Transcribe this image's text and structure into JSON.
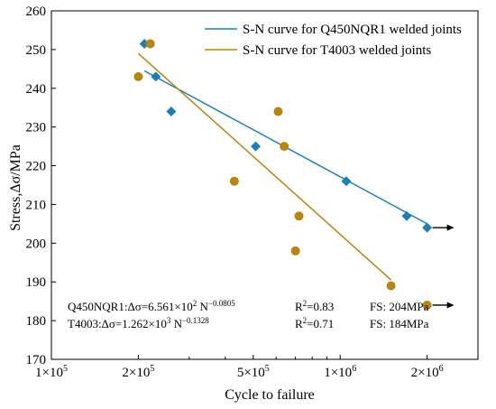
{
  "chart_data": {
    "type": "scatter",
    "title": "",
    "xlabel": "Cycle to failure",
    "ylabel": "Stress,Δσ/MPa",
    "x_scale": "log",
    "xlim": [
      100000,
      3000000
    ],
    "ylim": [
      170,
      260
    ],
    "x_ticks": [
      {
        "value": 100000,
        "mantissa": "1×10",
        "exp": "5"
      },
      {
        "value": 200000,
        "mantissa": "2×10",
        "exp": "5"
      },
      {
        "value": 500000,
        "mantissa": "5×10",
        "exp": "5"
      },
      {
        "value": 1000000,
        "mantissa": "1×10",
        "exp": "6"
      },
      {
        "value": 2000000,
        "mantissa": "2×10",
        "exp": "6"
      }
    ],
    "y_ticks": [
      170,
      180,
      190,
      200,
      210,
      220,
      230,
      240,
      250,
      260
    ],
    "legend_position": "top-right",
    "series": [
      {
        "name": "S-N curve for Q450NQR1 welded joints",
        "color": "#1a80b8",
        "marker": "diamond",
        "points": [
          {
            "x": 210000,
            "y": 251.5
          },
          {
            "x": 230000,
            "y": 243
          },
          {
            "x": 260000,
            "y": 234
          },
          {
            "x": 510000,
            "y": 225
          },
          {
            "x": 1050000,
            "y": 216
          },
          {
            "x": 1700000,
            "y": 207
          },
          {
            "x": 2000000,
            "y": 204,
            "runout": true
          }
        ],
        "fit_line": {
          "x": [
            210000,
            2000000
          ],
          "y": [
            244.5,
            205
          ]
        }
      },
      {
        "name": "S-N curve for T4003 welded joints",
        "color": "#b8860b",
        "marker": "circle",
        "points": [
          {
            "x": 200000,
            "y": 243
          },
          {
            "x": 220000,
            "y": 251.5
          },
          {
            "x": 430000,
            "y": 216
          },
          {
            "x": 610000,
            "y": 234
          },
          {
            "x": 640000,
            "y": 225
          },
          {
            "x": 700000,
            "y": 198
          },
          {
            "x": 720000,
            "y": 207
          },
          {
            "x": 1500000,
            "y": 189
          },
          {
            "x": 2000000,
            "y": 184,
            "runout": true
          }
        ],
        "fit_line": {
          "x": [
            200000,
            1500000
          ],
          "y": [
            249,
            190.5
          ]
        }
      }
    ],
    "annotations": [
      {
        "equation_prefix": "Q450NQR1:Δσ=6.561×10",
        "equation_exp1": "2",
        "equation_mid": " N",
        "equation_exp2": "−0.0805",
        "r2_prefix": "R",
        "r2_exp": "2",
        "r2_value": "=0.83",
        "fs": "FS: 204MPa"
      },
      {
        "equation_prefix": "T4003:Δσ=1.262×10",
        "equation_exp1": "3",
        "equation_mid": " N",
        "equation_exp2": "−0.1328",
        "r2_prefix": "R",
        "r2_exp": "2",
        "r2_value": "=0.71",
        "fs": "FS: 184MPa"
      }
    ]
  }
}
